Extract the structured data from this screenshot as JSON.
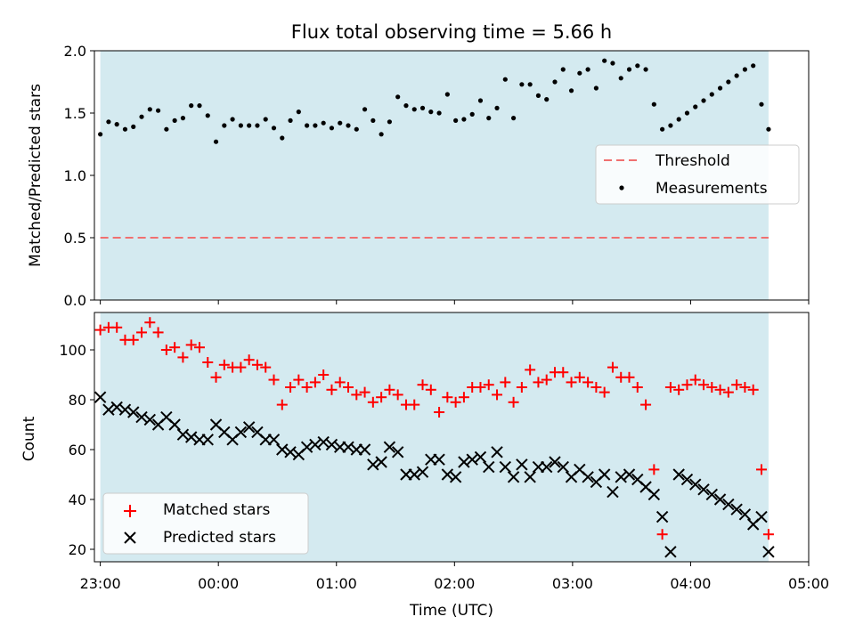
{
  "chart_data": [
    {
      "type": "scatter",
      "title": "Flux total observing time = 5.66 h",
      "xlabel": "",
      "ylabel": "Matched/Predicted stars",
      "xlim": [
        -0.05,
        6.0
      ],
      "ylim": [
        0.0,
        2.0
      ],
      "yticks": [
        "0.0",
        "0.5",
        "1.0",
        "1.5",
        "2.0"
      ],
      "shaded_interval": [
        0.0,
        5.66
      ],
      "shade_color": "#d4eaf0",
      "threshold": {
        "name": "Threshold",
        "value": 0.5,
        "x_range": [
          0.0,
          5.66
        ],
        "color": "#f07070",
        "style": "dashed"
      },
      "series": [
        {
          "name": "Measurements",
          "color": "#000000",
          "marker": "dot",
          "x": [
            0.0,
            0.07,
            0.14,
            0.21,
            0.28,
            0.35,
            0.42,
            0.49,
            0.56,
            0.63,
            0.7,
            0.77,
            0.84,
            0.91,
            0.98,
            1.05,
            1.12,
            1.19,
            1.26,
            1.33,
            1.4,
            1.47,
            1.54,
            1.61,
            1.68,
            1.75,
            1.82,
            1.89,
            1.96,
            2.03,
            2.1,
            2.17,
            2.24,
            2.31,
            2.38,
            2.45,
            2.52,
            2.59,
            2.66,
            2.73,
            2.8,
            2.87,
            2.94,
            3.01,
            3.08,
            3.15,
            3.22,
            3.29,
            3.36,
            3.43,
            3.5,
            3.57,
            3.64,
            3.71,
            3.78,
            3.85,
            3.92,
            3.99,
            4.06,
            4.13,
            4.2,
            4.27,
            4.34,
            4.41,
            4.48,
            4.55,
            4.62,
            4.69,
            4.76,
            4.83,
            4.9,
            4.97,
            5.04,
            5.11,
            5.18,
            5.25,
            5.32,
            5.39,
            5.46,
            5.53,
            5.6,
            5.66
          ],
          "y": [
            1.33,
            1.43,
            1.41,
            1.37,
            1.39,
            1.47,
            1.53,
            1.52,
            1.37,
            1.44,
            1.46,
            1.56,
            1.56,
            1.48,
            1.27,
            1.4,
            1.45,
            1.4,
            1.4,
            1.4,
            1.45,
            1.38,
            1.3,
            1.44,
            1.51,
            1.4,
            1.4,
            1.42,
            1.38,
            1.42,
            1.4,
            1.37,
            1.53,
            1.44,
            1.33,
            1.43,
            1.63,
            1.56,
            1.53,
            1.54,
            1.51,
            1.5,
            1.65,
            1.44,
            1.45,
            1.49,
            1.6,
            1.46,
            1.54,
            1.77,
            1.46,
            1.73,
            1.73,
            1.64,
            1.61,
            1.75,
            1.85,
            1.68,
            1.82,
            1.85,
            1.7,
            1.92,
            1.9,
            1.78,
            1.85,
            1.88,
            1.85,
            1.57,
            1.37,
            1.4,
            1.45,
            1.5,
            1.55,
            1.6,
            1.65,
            1.7,
            1.75,
            1.8,
            1.85,
            1.88,
            1.57,
            1.37
          ]
        }
      ],
      "legend": [
        "Threshold",
        "Measurements"
      ],
      "legend_position": "center-right"
    },
    {
      "type": "scatter",
      "title": "",
      "xlabel": "Time (UTC)",
      "ylabel": "Count",
      "xlim": [
        -0.05,
        6.0
      ],
      "ylim": [
        15,
        115
      ],
      "yticks": [
        "20",
        "40",
        "60",
        "80",
        "100"
      ],
      "xticks": [
        "23:00",
        "00:00",
        "01:00",
        "02:00",
        "03:00",
        "04:00",
        "05:00"
      ],
      "shaded_interval": [
        0.0,
        5.66
      ],
      "shade_color": "#d4eaf0",
      "series": [
        {
          "name": "Matched stars",
          "color": "#ff0000",
          "marker": "plus",
          "x": [
            0.0,
            0.07,
            0.14,
            0.21,
            0.28,
            0.35,
            0.42,
            0.49,
            0.56,
            0.63,
            0.7,
            0.77,
            0.84,
            0.91,
            0.98,
            1.05,
            1.12,
            1.19,
            1.26,
            1.33,
            1.4,
            1.47,
            1.54,
            1.61,
            1.68,
            1.75,
            1.82,
            1.89,
            1.96,
            2.03,
            2.1,
            2.17,
            2.24,
            2.31,
            2.38,
            2.45,
            2.52,
            2.59,
            2.66,
            2.73,
            2.8,
            2.87,
            2.94,
            3.01,
            3.08,
            3.15,
            3.22,
            3.29,
            3.36,
            3.43,
            3.5,
            3.57,
            3.64,
            3.71,
            3.78,
            3.85,
            3.92,
            3.99,
            4.06,
            4.13,
            4.2,
            4.27,
            4.34,
            4.41,
            4.48,
            4.55,
            4.62,
            4.69,
            4.76,
            4.83,
            4.9,
            4.97,
            5.04,
            5.11,
            5.18,
            5.25,
            5.32,
            5.39,
            5.46,
            5.53,
            5.6,
            5.66
          ],
          "y": [
            108,
            109,
            109,
            104,
            104,
            107,
            111,
            107,
            100,
            101,
            97,
            102,
            101,
            95,
            89,
            94,
            93,
            93,
            96,
            94,
            93,
            88,
            78,
            85,
            88,
            85,
            87,
            90,
            84,
            87,
            85,
            82,
            83,
            79,
            81,
            84,
            82,
            78,
            78,
            86,
            84,
            75,
            81,
            79,
            81,
            85,
            85,
            86,
            82,
            87,
            79,
            85,
            92,
            87,
            88,
            91,
            91,
            87,
            89,
            87,
            85,
            83,
            93,
            89,
            89,
            85,
            78,
            52,
            26,
            85,
            84,
            86,
            88,
            86,
            85,
            84,
            83,
            86,
            85,
            84,
            52,
            26
          ]
        },
        {
          "name": "Predicted stars",
          "color": "#000000",
          "marker": "x",
          "x": [
            0.0,
            0.07,
            0.14,
            0.21,
            0.28,
            0.35,
            0.42,
            0.49,
            0.56,
            0.63,
            0.7,
            0.77,
            0.84,
            0.91,
            0.98,
            1.05,
            1.12,
            1.19,
            1.26,
            1.33,
            1.4,
            1.47,
            1.54,
            1.61,
            1.68,
            1.75,
            1.82,
            1.89,
            1.96,
            2.03,
            2.1,
            2.17,
            2.24,
            2.31,
            2.38,
            2.45,
            2.52,
            2.59,
            2.66,
            2.73,
            2.8,
            2.87,
            2.94,
            3.01,
            3.08,
            3.15,
            3.22,
            3.29,
            3.36,
            3.43,
            3.5,
            3.57,
            3.64,
            3.71,
            3.78,
            3.85,
            3.92,
            3.99,
            4.06,
            4.13,
            4.2,
            4.27,
            4.34,
            4.41,
            4.48,
            4.55,
            4.62,
            4.69,
            4.76,
            4.83,
            4.9,
            4.97,
            5.04,
            5.11,
            5.18,
            5.25,
            5.32,
            5.39,
            5.46,
            5.53,
            5.6,
            5.66
          ],
          "y": [
            81,
            76,
            77,
            76,
            75,
            73,
            72,
            70,
            73,
            70,
            66,
            65,
            64,
            64,
            70,
            67,
            64,
            67,
            69,
            67,
            64,
            64,
            60,
            59,
            58,
            61,
            62,
            63,
            62,
            61,
            61,
            60,
            60,
            54,
            55,
            61,
            59,
            50,
            50,
            51,
            56,
            56,
            50,
            49,
            55,
            56,
            57,
            53,
            59,
            53,
            49,
            54,
            49,
            53,
            53,
            55,
            53,
            49,
            52,
            49,
            47,
            50,
            43,
            49,
            50,
            48,
            45,
            42,
            33,
            19,
            50,
            48,
            46,
            44,
            42,
            40,
            38,
            36,
            34,
            30,
            33,
            19
          ]
        }
      ],
      "legend": [
        "Matched stars",
        "Predicted stars"
      ],
      "legend_position": "bottom-left"
    }
  ]
}
